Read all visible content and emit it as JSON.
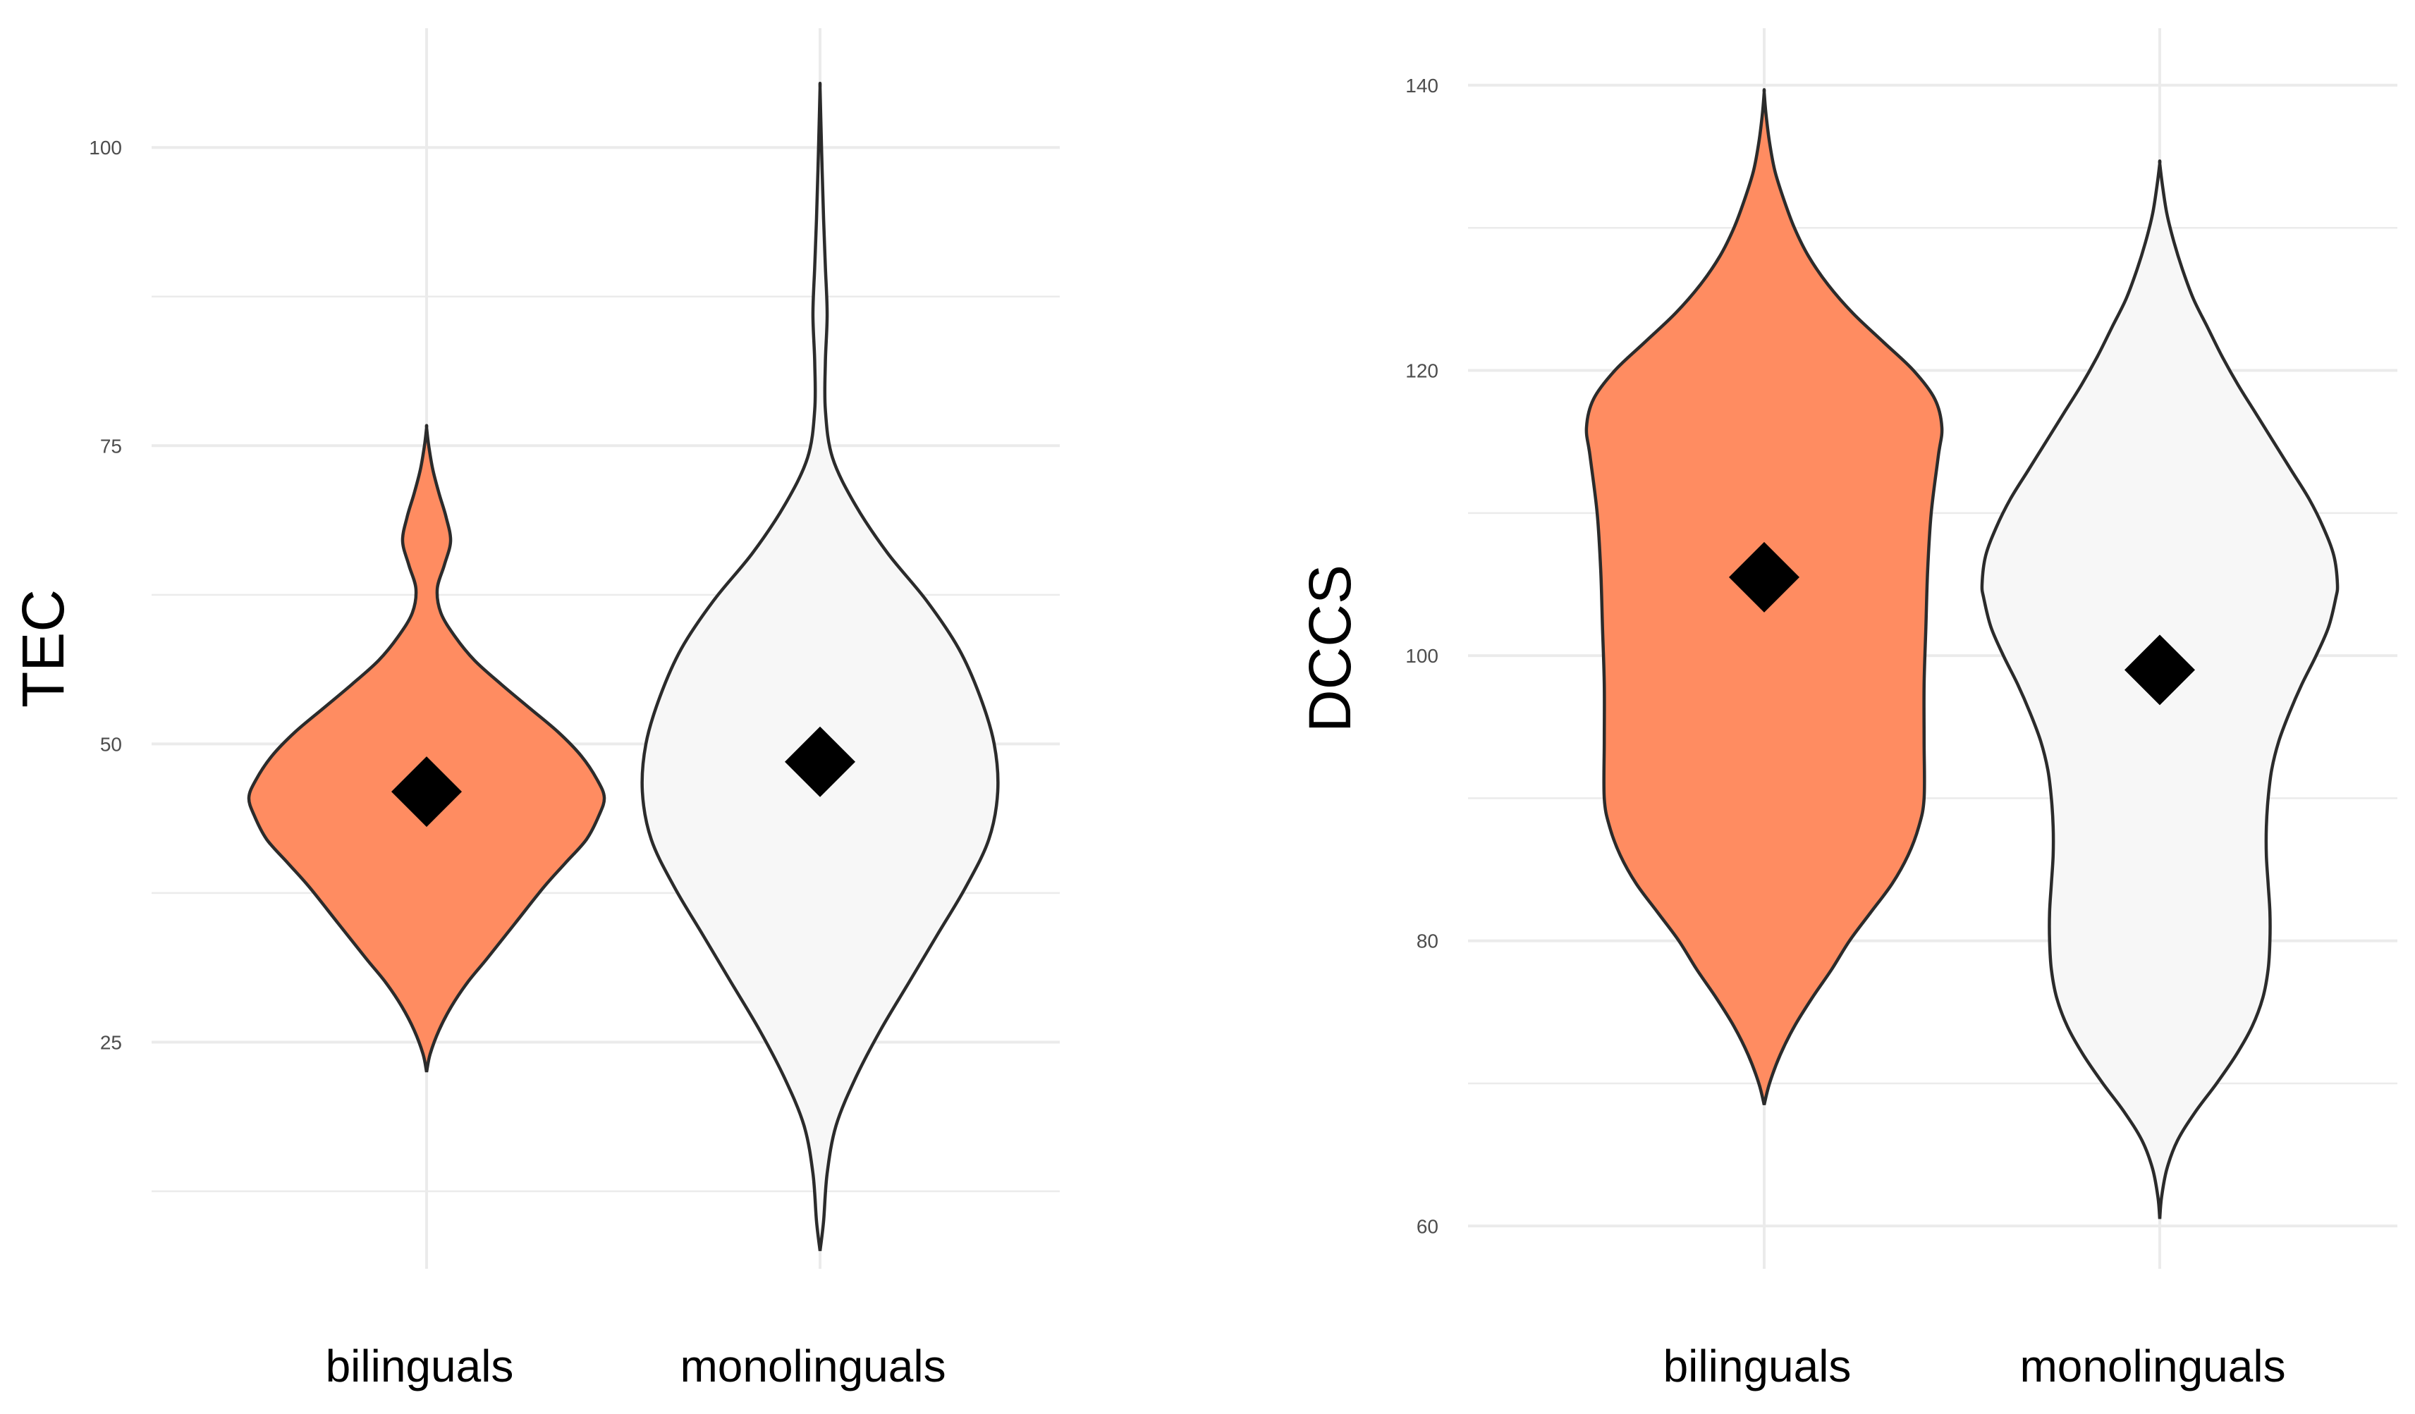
{
  "chart_data": [
    {
      "type": "violin",
      "panel": "left",
      "ylabel": "TEC",
      "xlabel": "",
      "categories": [
        "bilinguals",
        "monolinguals"
      ],
      "ylim": [
        6,
        110
      ],
      "yticks": [
        25,
        50,
        75,
        100
      ],
      "minor_gridlines": [
        12.5,
        37.5,
        62.5,
        87.5
      ],
      "grid": true,
      "series": [
        {
          "name": "bilinguals",
          "fill": "#ff8c61",
          "mean": 46,
          "min": 22.5,
          "max": 76.5,
          "density_profile": [
            [
              22.5,
              0.0
            ],
            [
              24,
              0.02
            ],
            [
              26,
              0.07
            ],
            [
              28,
              0.14
            ],
            [
              30,
              0.23
            ],
            [
              32,
              0.34
            ],
            [
              35,
              0.5
            ],
            [
              38,
              0.66
            ],
            [
              40,
              0.78
            ],
            [
              42,
              0.9
            ],
            [
              44,
              0.97
            ],
            [
              45.5,
              1.0
            ],
            [
              47,
              0.96
            ],
            [
              49,
              0.87
            ],
            [
              51,
              0.74
            ],
            [
              53,
              0.58
            ],
            [
              55,
              0.42
            ],
            [
              57,
              0.27
            ],
            [
              59,
              0.16
            ],
            [
              61,
              0.08
            ],
            [
              63,
              0.06
            ],
            [
              65,
              0.1
            ],
            [
              67,
              0.135
            ],
            [
              69,
              0.11
            ],
            [
              71,
              0.07
            ],
            [
              73,
              0.035
            ],
            [
              75,
              0.012
            ],
            [
              76.5,
              0.0
            ]
          ]
        },
        {
          "name": "monolinguals",
          "fill": "#f7f7f7",
          "mean": 48.5,
          "min": 7.5,
          "max": 105,
          "density_profile": [
            [
              7.5,
              0.0
            ],
            [
              10,
              0.02
            ],
            [
              14,
              0.04
            ],
            [
              18,
              0.09
            ],
            [
              22,
              0.2
            ],
            [
              26,
              0.34
            ],
            [
              30,
              0.5
            ],
            [
              34,
              0.66
            ],
            [
              38,
              0.82
            ],
            [
              42,
              0.95
            ],
            [
              46,
              1.0
            ],
            [
              50,
              0.98
            ],
            [
              54,
              0.9
            ],
            [
              58,
              0.78
            ],
            [
              62,
              0.6
            ],
            [
              66,
              0.38
            ],
            [
              70,
              0.2
            ],
            [
              74,
              0.07
            ],
            [
              78,
              0.03
            ],
            [
              82,
              0.03
            ],
            [
              86,
              0.04
            ],
            [
              90,
              0.03
            ],
            [
              94,
              0.02
            ],
            [
              98,
              0.012
            ],
            [
              102,
              0.005
            ],
            [
              105,
              0.0
            ]
          ]
        }
      ]
    },
    {
      "type": "violin",
      "panel": "right",
      "ylabel": "DCCS",
      "xlabel": "",
      "categories": [
        "bilinguals",
        "monolinguals"
      ],
      "ylim": [
        57,
        144
      ],
      "yticks": [
        60,
        80,
        100,
        120,
        140
      ],
      "minor_gridlines": [
        70,
        90,
        110,
        130
      ],
      "grid": true,
      "series": [
        {
          "name": "bilinguals",
          "fill": "#ff8c61",
          "mean": 105.5,
          "min": 68.5,
          "max": 139.5,
          "density_profile": [
            [
              68.5,
              0.0
            ],
            [
              70,
              0.03
            ],
            [
              72,
              0.09
            ],
            [
              74,
              0.17
            ],
            [
              76,
              0.27
            ],
            [
              78,
              0.38
            ],
            [
              80,
              0.48
            ],
            [
              82,
              0.6
            ],
            [
              84,
              0.72
            ],
            [
              86,
              0.81
            ],
            [
              88,
              0.87
            ],
            [
              90,
              0.9
            ],
            [
              94,
              0.9
            ],
            [
              98,
              0.9
            ],
            [
              102,
              0.91
            ],
            [
              106,
              0.92
            ],
            [
              110,
              0.94
            ],
            [
              114,
              0.98
            ],
            [
              116,
              1.0
            ],
            [
              118,
              0.96
            ],
            [
              120,
              0.84
            ],
            [
              122,
              0.67
            ],
            [
              124,
              0.5
            ],
            [
              126,
              0.36
            ],
            [
              128,
              0.25
            ],
            [
              130,
              0.17
            ],
            [
              132,
              0.11
            ],
            [
              134,
              0.06
            ],
            [
              136,
              0.03
            ],
            [
              138,
              0.01
            ],
            [
              139.5,
              0.0
            ]
          ]
        },
        {
          "name": "monolinguals",
          "fill": "#f7f7f7",
          "mean": 99,
          "min": 60.5,
          "max": 134.5,
          "density_profile": [
            [
              60.5,
              0.0
            ],
            [
              62,
              0.01
            ],
            [
              64,
              0.04
            ],
            [
              66,
              0.1
            ],
            [
              68,
              0.2
            ],
            [
              70,
              0.32
            ],
            [
              72,
              0.43
            ],
            [
              74,
              0.52
            ],
            [
              76,
              0.58
            ],
            [
              78,
              0.61
            ],
            [
              80,
              0.62
            ],
            [
              82,
              0.62
            ],
            [
              84,
              0.61
            ],
            [
              86,
              0.6
            ],
            [
              88,
              0.6
            ],
            [
              90,
              0.61
            ],
            [
              92,
              0.63
            ],
            [
              94,
              0.67
            ],
            [
              96,
              0.73
            ],
            [
              98,
              0.8
            ],
            [
              100,
              0.88
            ],
            [
              102,
              0.95
            ],
            [
              104,
              0.99
            ],
            [
              105,
              1.0
            ],
            [
              107,
              0.98
            ],
            [
              109,
              0.92
            ],
            [
              111,
              0.84
            ],
            [
              113,
              0.74
            ],
            [
              115,
              0.64
            ],
            [
              117,
              0.54
            ],
            [
              119,
              0.44
            ],
            [
              121,
              0.35
            ],
            [
              123,
              0.27
            ],
            [
              125,
              0.19
            ],
            [
              127,
              0.13
            ],
            [
              129,
              0.08
            ],
            [
              131,
              0.04
            ],
            [
              133,
              0.015
            ],
            [
              134.5,
              0.0
            ]
          ]
        }
      ]
    }
  ]
}
